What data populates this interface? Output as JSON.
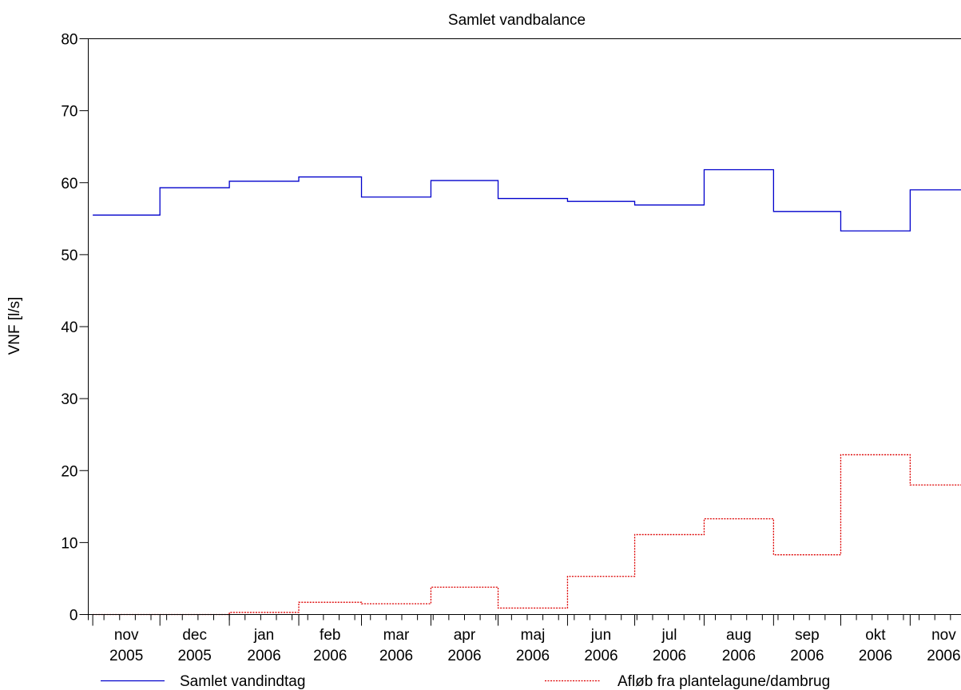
{
  "chart_data": {
    "type": "line",
    "step": true,
    "title": "Samlet vandbalance",
    "ylabel": "VNF [l/s]",
    "xlabel": "",
    "ylim": [
      0,
      80
    ],
    "yticks": [
      0,
      10,
      20,
      30,
      40,
      50,
      60,
      70,
      80
    ],
    "grid": false,
    "legend_position": "bottom",
    "month_labels": [
      {
        "month": "nov",
        "year": "2005"
      },
      {
        "month": "dec",
        "year": "2005"
      },
      {
        "month": "jan",
        "year": "2006"
      },
      {
        "month": "feb",
        "year": "2006"
      },
      {
        "month": "mar",
        "year": "2006"
      },
      {
        "month": "apr",
        "year": "2006"
      },
      {
        "month": "maj",
        "year": "2006"
      },
      {
        "month": "jun",
        "year": "2006"
      },
      {
        "month": "jul",
        "year": "2006"
      },
      {
        "month": "aug",
        "year": "2006"
      },
      {
        "month": "sep",
        "year": "2006"
      },
      {
        "month": "okt",
        "year": "2006"
      },
      {
        "month": "nov",
        "year": "2006"
      }
    ],
    "series": [
      {
        "name": "Samlet vandindtag",
        "color": "#0000cc",
        "dash": "solid",
        "steps": [
          {
            "from": "2005-11-01",
            "to": "2005-12-01",
            "value": 55.5
          },
          {
            "from": "2005-12-01",
            "to": "2006-01-01",
            "value": 59.3
          },
          {
            "from": "2006-01-01",
            "to": "2006-02-01",
            "value": 60.2
          },
          {
            "from": "2006-02-01",
            "to": "2006-03-01",
            "value": 60.8
          },
          {
            "from": "2006-03-01",
            "to": "2006-04-01",
            "value": 58.0
          },
          {
            "from": "2006-04-01",
            "to": "2006-05-01",
            "value": 60.3
          },
          {
            "from": "2006-05-01",
            "to": "2006-05-27",
            "value": 57.8
          },
          {
            "from": "2006-05-27",
            "to": "2006-06-01",
            "value": 57.8
          },
          {
            "from": "2006-06-01",
            "to": "2006-07-01",
            "value": 57.4
          },
          {
            "from": "2006-07-01",
            "to": "2006-08-01",
            "value": 56.9
          },
          {
            "from": "2006-08-01",
            "to": "2006-09-01",
            "value": 61.8
          },
          {
            "from": "2006-09-01",
            "to": "2006-10-01",
            "value": 56.0
          },
          {
            "from": "2006-10-01",
            "to": "2006-11-01",
            "value": 53.3
          },
          {
            "from": "2006-11-01",
            "to": "2006-12-01",
            "value": 59.0
          }
        ]
      },
      {
        "name": "Afløb fra plantelagune/dambrug",
        "color": "#dd0000",
        "dash": "dotted",
        "steps": [
          {
            "from": "2005-11-01",
            "to": "2005-12-01",
            "value": 0.0
          },
          {
            "from": "2005-12-01",
            "to": "2006-01-01",
            "value": 0.0
          },
          {
            "from": "2006-01-01",
            "to": "2006-02-01",
            "value": 0.3
          },
          {
            "from": "2006-02-01",
            "to": "2006-03-01",
            "value": 1.7
          },
          {
            "from": "2006-03-01",
            "to": "2006-04-01",
            "value": 1.5
          },
          {
            "from": "2006-04-01",
            "to": "2006-05-01",
            "value": 3.8
          },
          {
            "from": "2006-05-01",
            "to": "2006-06-01",
            "value": 0.9
          },
          {
            "from": "2006-06-01",
            "to": "2006-07-01",
            "value": 5.3
          },
          {
            "from": "2006-07-01",
            "to": "2006-08-01",
            "value": 11.1
          },
          {
            "from": "2006-08-01",
            "to": "2006-09-01",
            "value": 13.3
          },
          {
            "from": "2006-09-01",
            "to": "2006-10-01",
            "value": 8.3
          },
          {
            "from": "2006-10-01",
            "to": "2006-11-01",
            "value": 22.2
          },
          {
            "from": "2006-11-01",
            "to": "2006-12-01",
            "value": 18.0
          }
        ]
      }
    ]
  }
}
